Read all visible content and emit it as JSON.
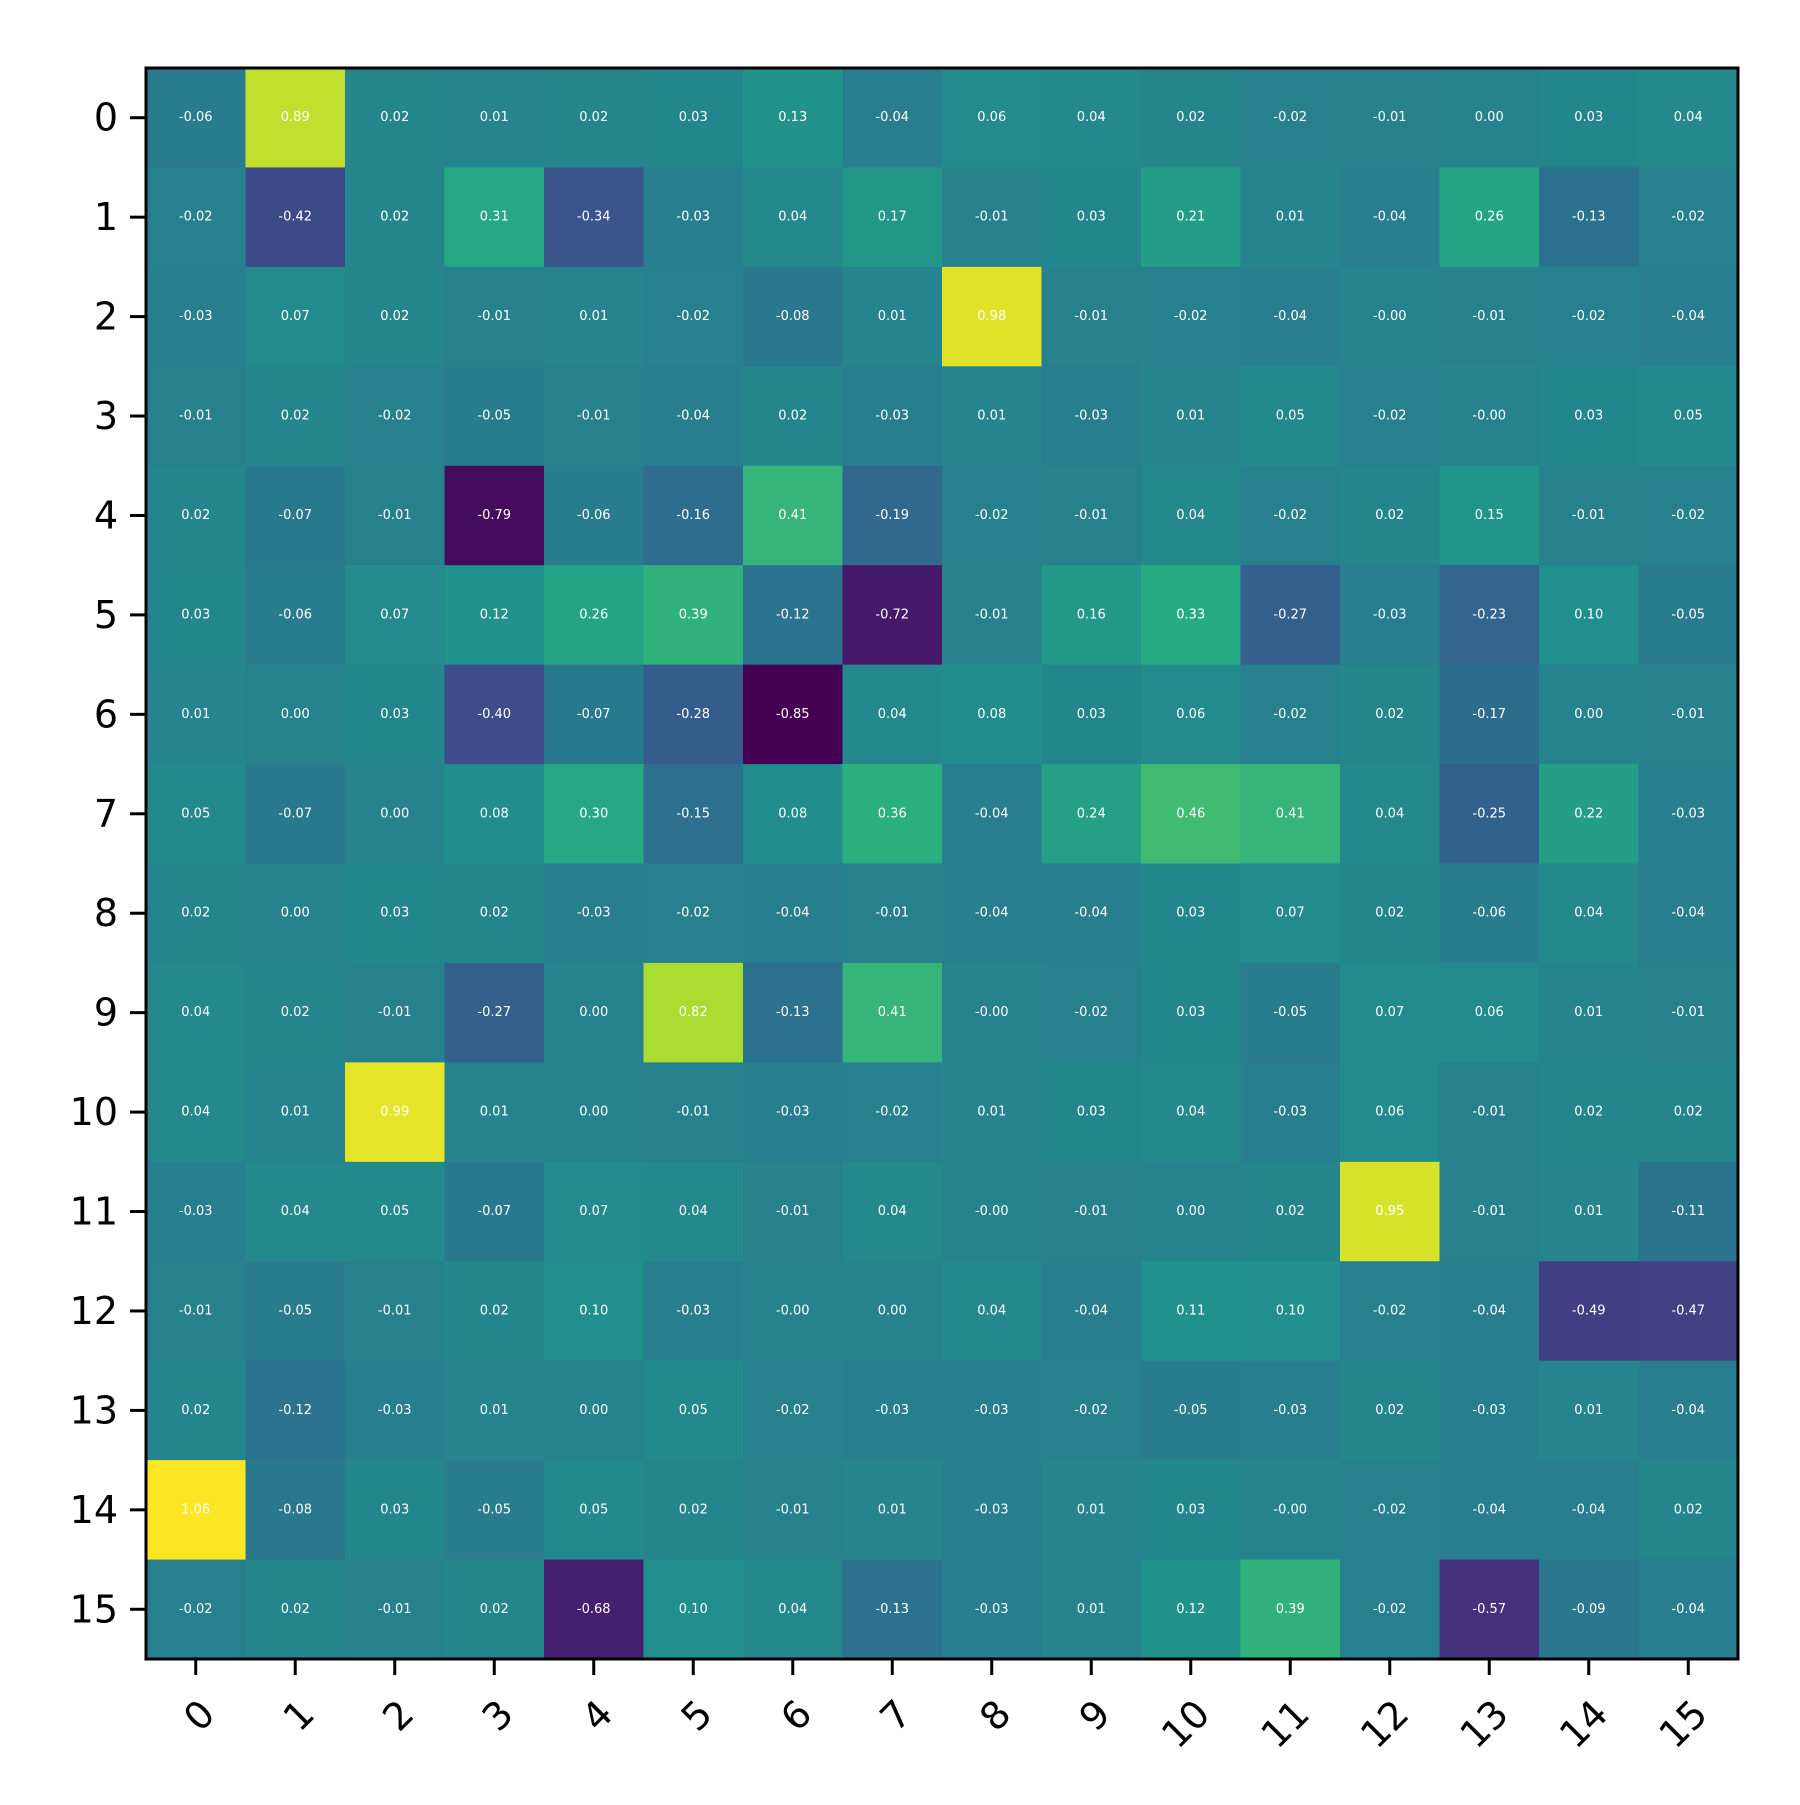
{
  "chart_data": {
    "type": "heatmap",
    "title": "",
    "xlabel": "",
    "ylabel": "",
    "x_categories": [
      "0",
      "1",
      "2",
      "3",
      "4",
      "5",
      "6",
      "7",
      "8",
      "9",
      "10",
      "11",
      "12",
      "13",
      "14",
      "15"
    ],
    "y_categories": [
      "0",
      "1",
      "2",
      "3",
      "4",
      "5",
      "6",
      "7",
      "8",
      "9",
      "10",
      "11",
      "12",
      "13",
      "14",
      "15"
    ],
    "colormap": "viridis",
    "value_range": [
      -0.85,
      1.06
    ],
    "cell_label_color": "#ffffff",
    "values": [
      [
        "-0.06",
        "0.89",
        "0.02",
        "0.01",
        "0.02",
        "0.03",
        "0.13",
        "-0.04",
        "0.06",
        "0.04",
        "0.02",
        "-0.02",
        "-0.01",
        "0.00",
        "0.03",
        "0.04"
      ],
      [
        "-0.02",
        "-0.42",
        "0.02",
        "0.31",
        "-0.34",
        "-0.03",
        "0.04",
        "0.17",
        "-0.01",
        "0.03",
        "0.21",
        "0.01",
        "-0.04",
        "0.26",
        "-0.13",
        "-0.02"
      ],
      [
        "-0.03",
        "0.07",
        "0.02",
        "-0.01",
        "0.01",
        "-0.02",
        "-0.08",
        "0.01",
        "0.98",
        "-0.01",
        "-0.02",
        "-0.04",
        "-0.00",
        "-0.01",
        "-0.02",
        "-0.04"
      ],
      [
        "-0.01",
        "0.02",
        "-0.02",
        "-0.05",
        "-0.01",
        "-0.04",
        "0.02",
        "-0.03",
        "0.01",
        "-0.03",
        "0.01",
        "0.05",
        "-0.02",
        "-0.00",
        "0.03",
        "0.05"
      ],
      [
        "0.02",
        "-0.07",
        "-0.01",
        "-0.79",
        "-0.06",
        "-0.16",
        "0.41",
        "-0.19",
        "-0.02",
        "-0.01",
        "0.04",
        "-0.02",
        "0.02",
        "0.15",
        "-0.01",
        "-0.02"
      ],
      [
        "0.03",
        "-0.06",
        "0.07",
        "0.12",
        "0.26",
        "0.39",
        "-0.12",
        "-0.72",
        "-0.01",
        "0.16",
        "0.33",
        "-0.27",
        "-0.03",
        "-0.23",
        "0.10",
        "-0.05"
      ],
      [
        "0.01",
        "0.00",
        "0.03",
        "-0.40",
        "-0.07",
        "-0.28",
        "-0.85",
        "0.04",
        "0.08",
        "0.03",
        "0.06",
        "-0.02",
        "0.02",
        "-0.17",
        "0.00",
        "-0.01"
      ],
      [
        "0.05",
        "-0.07",
        "0.00",
        "0.08",
        "0.30",
        "-0.15",
        "0.08",
        "0.36",
        "-0.04",
        "0.24",
        "0.46",
        "0.41",
        "0.04",
        "-0.25",
        "0.22",
        "-0.03"
      ],
      [
        "0.02",
        "0.00",
        "0.03",
        "0.02",
        "-0.03",
        "-0.02",
        "-0.04",
        "-0.01",
        "-0.04",
        "-0.04",
        "0.03",
        "0.07",
        "0.02",
        "-0.06",
        "0.04",
        "-0.04"
      ],
      [
        "0.04",
        "0.02",
        "-0.01",
        "-0.27",
        "0.00",
        "0.82",
        "-0.13",
        "0.41",
        "-0.00",
        "-0.02",
        "0.03",
        "-0.05",
        "0.07",
        "0.06",
        "0.01",
        "-0.01"
      ],
      [
        "0.04",
        "0.01",
        "0.99",
        "0.01",
        "0.00",
        "-0.01",
        "-0.03",
        "-0.02",
        "0.01",
        "0.03",
        "0.04",
        "-0.03",
        "0.06",
        "-0.01",
        "0.02",
        "0.02"
      ],
      [
        "-0.03",
        "0.04",
        "0.05",
        "-0.07",
        "0.07",
        "0.04",
        "-0.01",
        "0.04",
        "-0.00",
        "-0.01",
        "0.00",
        "0.02",
        "0.95",
        "-0.01",
        "0.01",
        "-0.11"
      ],
      [
        "-0.01",
        "-0.05",
        "-0.01",
        "0.02",
        "0.10",
        "-0.03",
        "-0.00",
        "0.00",
        "0.04",
        "-0.04",
        "0.11",
        "0.10",
        "-0.02",
        "-0.04",
        "-0.49",
        "-0.47"
      ],
      [
        "0.02",
        "-0.12",
        "-0.03",
        "0.01",
        "0.00",
        "0.05",
        "-0.02",
        "-0.03",
        "-0.03",
        "-0.02",
        "-0.05",
        "-0.03",
        "0.02",
        "-0.03",
        "0.01",
        "-0.04"
      ],
      [
        "1.06",
        "-0.08",
        "0.03",
        "-0.05",
        "0.05",
        "0.02",
        "-0.01",
        "0.01",
        "-0.03",
        "0.01",
        "0.03",
        "-0.00",
        "-0.02",
        "-0.04",
        "-0.04",
        "0.02"
      ],
      [
        "-0.02",
        "0.02",
        "-0.01",
        "0.02",
        "-0.68",
        "0.10",
        "0.04",
        "-0.13",
        "-0.03",
        "0.01",
        "0.12",
        "0.39",
        "-0.02",
        "-0.57",
        "-0.09",
        "-0.04"
      ]
    ]
  }
}
